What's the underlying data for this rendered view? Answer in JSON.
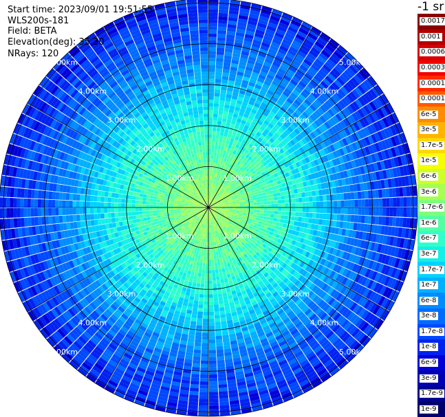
{
  "header": {
    "start_time": "Start time: 2023/09/01 19:51:55",
    "instrument": "WLS200s-181",
    "field": "Field: BETA",
    "elevation": "Elevation(deg): 35.30",
    "nrays": "NRays: 120"
  },
  "colorbar": {
    "unit": "-1 sr",
    "entries": [
      {
        "label": "0.0017",
        "color": "#8b0000"
      },
      {
        "label": "0.001",
        "color": "#b00000"
      },
      {
        "label": "0.0006",
        "color": "#d80000"
      },
      {
        "label": "0.0003",
        "color": "#f40000"
      },
      {
        "label": "0.00017",
        "color": "#ff2a00"
      },
      {
        "label": "0.0001",
        "color": "#ff5a00"
      },
      {
        "label": "6e-5",
        "color": "#ff8c00"
      },
      {
        "label": "3e-5",
        "color": "#ffb400"
      },
      {
        "label": "1.7e-5",
        "color": "#ffd800"
      },
      {
        "label": "1e-5",
        "color": "#f6ff00"
      },
      {
        "label": "6e-6",
        "color": "#cdff2a"
      },
      {
        "label": "3e-6",
        "color": "#a6ff52"
      },
      {
        "label": "1.7e-6",
        "color": "#7cff7c"
      },
      {
        "label": "1e-6",
        "color": "#54ffa4"
      },
      {
        "label": "6e-7",
        "color": "#2effcc"
      },
      {
        "label": "3e-7",
        "color": "#12f0e8"
      },
      {
        "label": "1.7e-7",
        "color": "#00d2ff"
      },
      {
        "label": "1e-7",
        "color": "#00b0ff"
      },
      {
        "label": "6e-8",
        "color": "#008cff"
      },
      {
        "label": "3e-8",
        "color": "#006cff"
      },
      {
        "label": "1.7e-8",
        "color": "#0048ff"
      },
      {
        "label": "1e-8",
        "color": "#0022f0"
      },
      {
        "label": "6e-9",
        "color": "#0000d8"
      },
      {
        "label": "3e-9",
        "color": "#0000b4"
      },
      {
        "label": "1.7e-9",
        "color": "#000090"
      },
      {
        "label": "1e-9",
        "color": "#00006c"
      }
    ]
  },
  "chart_data": {
    "type": "heatmap",
    "projection": "polar-ppi",
    "rays": 120,
    "range_rings_km": [
      1,
      2,
      3,
      4,
      5
    ],
    "ring_labels": [
      "1.00km",
      "2.00km",
      "3.00km",
      "4.00km",
      "5.00km"
    ],
    "max_range_km": 5.1,
    "spokes_deg": [
      0,
      30,
      60,
      90,
      120,
      150,
      180,
      210,
      240,
      270,
      300,
      330
    ],
    "color_scale": "log",
    "value_range": [
      1e-09,
      0.0017
    ],
    "radial_profile": [
      {
        "range_km": 0.0,
        "beta": 3e-06
      },
      {
        "range_km": 0.5,
        "beta": 2e-06
      },
      {
        "range_km": 1.0,
        "beta": 1.2e-06
      },
      {
        "range_km": 1.5,
        "beta": 7e-07
      },
      {
        "range_km": 2.0,
        "beta": 4e-07
      },
      {
        "range_km": 2.5,
        "beta": 2.5e-07
      },
      {
        "range_km": 3.0,
        "beta": 1.2e-07
      },
      {
        "range_km": 3.5,
        "beta": 5e-08
      },
      {
        "range_km": 4.0,
        "beta": 2.5e-08
      },
      {
        "range_km": 4.5,
        "beta": 1.5e-08
      },
      {
        "range_km": 5.0,
        "beta": 1e-08
      }
    ]
  }
}
